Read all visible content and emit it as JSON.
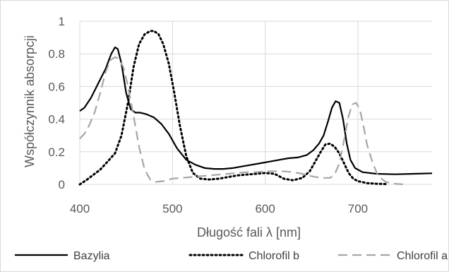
{
  "chart_data": {
    "type": "line",
    "title": "",
    "xlabel": "Długość fali λ [nm]",
    "ylabel": "Współczynnik absorpcji",
    "xlim": [
      400,
      780
    ],
    "ylim": [
      0,
      1
    ],
    "xticks": [
      400,
      500,
      600,
      700
    ],
    "yticks": [
      0,
      0.2,
      0.4,
      0.6,
      0.8,
      1
    ],
    "ytick_labels": [
      "0",
      "0.2",
      "0.4",
      "0.6",
      "0.8",
      "1"
    ],
    "grid": true,
    "legend_position": "bottom",
    "series": [
      {
        "name": "Bazylia",
        "color": "#000000",
        "style": "solid",
        "x": [
          400,
          405,
          412,
          420,
          428,
          434,
          438,
          441,
          445,
          450,
          455,
          460,
          465,
          472,
          480,
          488,
          496,
          505,
          515,
          525,
          535,
          545,
          555,
          565,
          575,
          585,
          595,
          605,
          615,
          625,
          635,
          645,
          652,
          658,
          663,
          668,
          672,
          676,
          680,
          684,
          688,
          692,
          697,
          705,
          720,
          740,
          760,
          780
        ],
        "y": [
          0.45,
          0.47,
          0.53,
          0.62,
          0.71,
          0.8,
          0.84,
          0.83,
          0.74,
          0.56,
          0.46,
          0.44,
          0.44,
          0.43,
          0.41,
          0.37,
          0.31,
          0.22,
          0.15,
          0.12,
          0.1,
          0.095,
          0.095,
          0.1,
          0.11,
          0.12,
          0.13,
          0.14,
          0.15,
          0.16,
          0.165,
          0.18,
          0.21,
          0.25,
          0.3,
          0.39,
          0.47,
          0.51,
          0.5,
          0.4,
          0.25,
          0.15,
          0.1,
          0.075,
          0.065,
          0.062,
          0.065,
          0.068
        ]
      },
      {
        "name": "Chlorofil b",
        "color": "#000000",
        "style": "dotted",
        "x": [
          400,
          408,
          415,
          422,
          430,
          438,
          445,
          452,
          458,
          464,
          470,
          476,
          480,
          485,
          490,
          496,
          502,
          508,
          515,
          522,
          530,
          540,
          550,
          560,
          570,
          580,
          590,
          600,
          610,
          620,
          630,
          640,
          648,
          655,
          660,
          665,
          670,
          675,
          680,
          685,
          690,
          695,
          700,
          710,
          720,
          730
        ],
        "y": [
          0.0,
          0.03,
          0.06,
          0.09,
          0.14,
          0.19,
          0.3,
          0.5,
          0.72,
          0.86,
          0.92,
          0.94,
          0.94,
          0.92,
          0.86,
          0.74,
          0.56,
          0.36,
          0.17,
          0.07,
          0.035,
          0.03,
          0.035,
          0.045,
          0.055,
          0.06,
          0.065,
          0.07,
          0.065,
          0.035,
          0.025,
          0.04,
          0.08,
          0.15,
          0.2,
          0.245,
          0.25,
          0.23,
          0.19,
          0.13,
          0.07,
          0.035,
          0.02,
          0.008,
          0.004,
          0.002
        ]
      },
      {
        "name": "Chlorofil a",
        "color": "#a6a6a6",
        "style": "dashed",
        "x": [
          400,
          405,
          410,
          416,
          422,
          428,
          433,
          438,
          442,
          447,
          452,
          458,
          464,
          470,
          476,
          482,
          490,
          500,
          510,
          520,
          530,
          540,
          550,
          560,
          570,
          580,
          590,
          600,
          610,
          620,
          630,
          640,
          650,
          660,
          670,
          675,
          680,
          685,
          690,
          694,
          698,
          702,
          706,
          710,
          716,
          722,
          730,
          740,
          750
        ],
        "y": [
          0.28,
          0.31,
          0.36,
          0.44,
          0.56,
          0.69,
          0.76,
          0.78,
          0.77,
          0.72,
          0.6,
          0.42,
          0.23,
          0.09,
          0.03,
          0.015,
          0.02,
          0.035,
          0.04,
          0.045,
          0.05,
          0.055,
          0.06,
          0.065,
          0.07,
          0.075,
          0.075,
          0.08,
          0.08,
          0.08,
          0.075,
          0.065,
          0.05,
          0.04,
          0.04,
          0.06,
          0.13,
          0.27,
          0.42,
          0.49,
          0.5,
          0.46,
          0.36,
          0.24,
          0.13,
          0.05,
          0.015,
          0.004,
          0.0
        ]
      }
    ]
  }
}
